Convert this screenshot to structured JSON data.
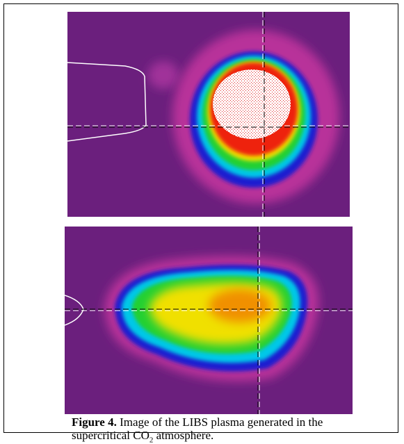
{
  "caption": {
    "label": "Figure 4.",
    "text_before": " Image of the LIBS plasma generated in the supercritical CO",
    "subscript": "2",
    "text_after": " atmosphere."
  }
}
